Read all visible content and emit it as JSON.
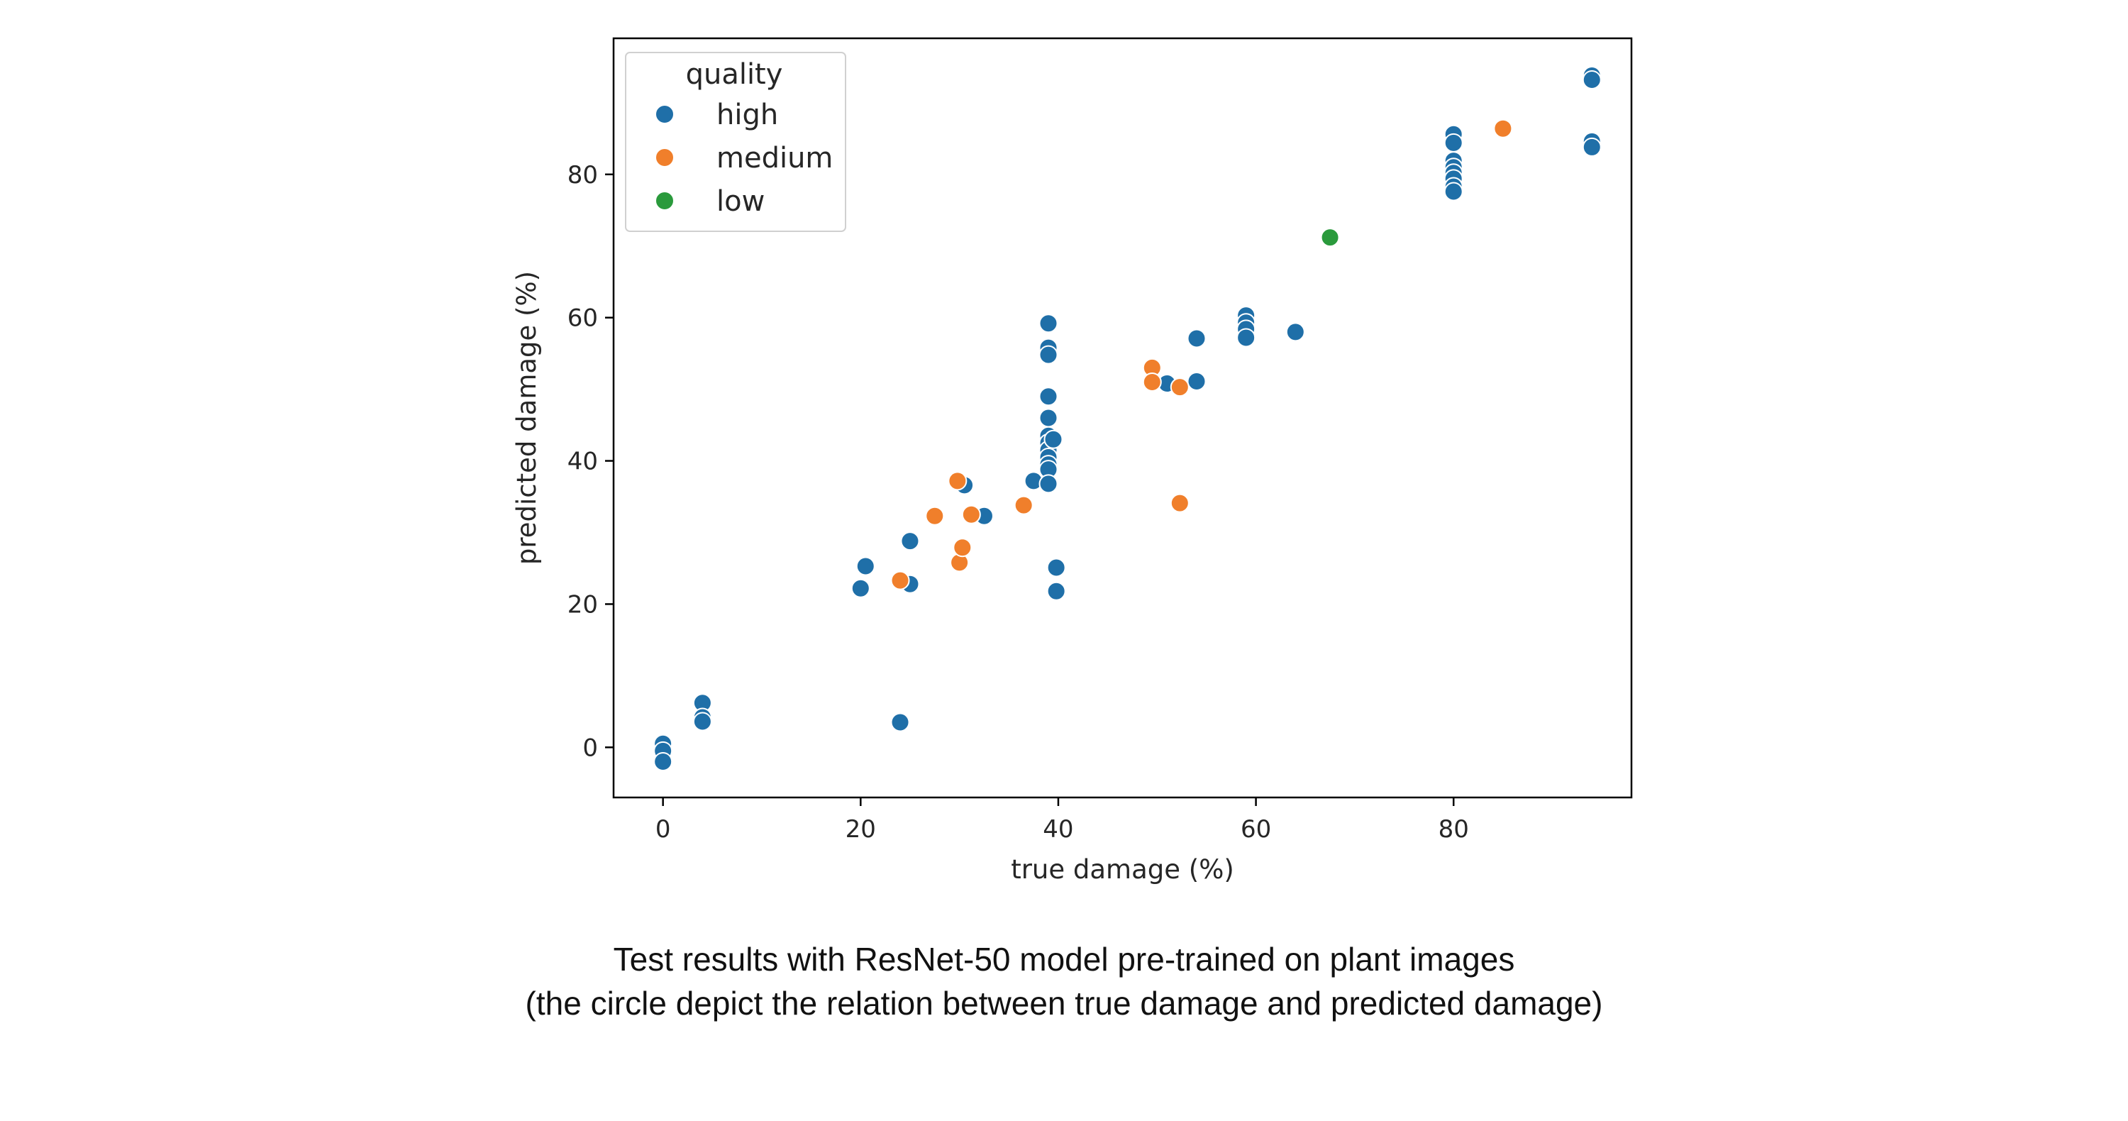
{
  "chart_data": {
    "type": "scatter",
    "xlabel": "true damage (%)",
    "ylabel": "predicted damage (%)",
    "xlim": [
      -5,
      98
    ],
    "ylim": [
      -7,
      99
    ],
    "xticks": [
      0,
      20,
      40,
      60,
      80
    ],
    "yticks": [
      0,
      20,
      40,
      60,
      80
    ],
    "grid": false,
    "legend": {
      "title": "quality",
      "placement": "top-left"
    },
    "series": [
      {
        "name": "high",
        "color": "#1f6fa8",
        "points": [
          [
            0,
            0.5
          ],
          [
            0,
            -0.5
          ],
          [
            0,
            -2
          ],
          [
            4,
            6.2
          ],
          [
            4,
            4.2
          ],
          [
            4,
            3.6
          ],
          [
            20,
            22.2
          ],
          [
            20.5,
            25.3
          ],
          [
            25,
            28.8
          ],
          [
            25,
            22.8
          ],
          [
            24,
            3.5
          ],
          [
            30.5,
            36.6
          ],
          [
            32.5,
            32.3
          ],
          [
            37.5,
            37.2
          ],
          [
            39,
            59.2
          ],
          [
            39,
            55.8
          ],
          [
            39,
            54.8
          ],
          [
            39,
            49
          ],
          [
            39,
            46
          ],
          [
            39,
            43.5
          ],
          [
            39,
            42.5
          ],
          [
            39,
            41.5
          ],
          [
            39,
            40.5
          ],
          [
            39,
            39.5
          ],
          [
            39,
            38.8
          ],
          [
            39,
            36.8
          ],
          [
            39.5,
            43
          ],
          [
            39.8,
            25.1
          ],
          [
            39.8,
            21.8
          ],
          [
            51,
            50.8
          ],
          [
            54,
            57.1
          ],
          [
            54,
            51.1
          ],
          [
            59,
            60.3
          ],
          [
            59,
            59.3
          ],
          [
            59,
            58.4
          ],
          [
            59,
            57.2
          ],
          [
            64,
            58
          ],
          [
            80,
            85.6
          ],
          [
            80,
            84.4
          ],
          [
            80,
            81.9
          ],
          [
            80,
            81
          ],
          [
            80,
            80.2
          ],
          [
            80,
            79.4
          ],
          [
            80,
            78.3
          ],
          [
            80,
            77.6
          ],
          [
            94,
            93.8
          ],
          [
            94,
            93.2
          ],
          [
            94,
            84.6
          ],
          [
            94,
            83.8
          ]
        ]
      },
      {
        "name": "medium",
        "color": "#f07f2b",
        "points": [
          [
            24,
            23.3
          ],
          [
            27.5,
            32.3
          ],
          [
            29.8,
            37.2
          ],
          [
            30,
            25.8
          ],
          [
            30.3,
            27.9
          ],
          [
            31.2,
            32.5
          ],
          [
            36.5,
            33.8
          ],
          [
            49.5,
            53
          ],
          [
            49.5,
            51
          ],
          [
            52.3,
            50.3
          ],
          [
            52.3,
            34.1
          ],
          [
            85,
            86.4
          ]
        ]
      },
      {
        "name": "low",
        "color": "#2a9a3c",
        "points": [
          [
            67.5,
            71.2
          ]
        ]
      }
    ]
  },
  "caption": {
    "line1": "Test results with ResNet-50 model pre-trained on plant images",
    "line2": "(the circle depict the relation between true damage and predicted damage)"
  }
}
